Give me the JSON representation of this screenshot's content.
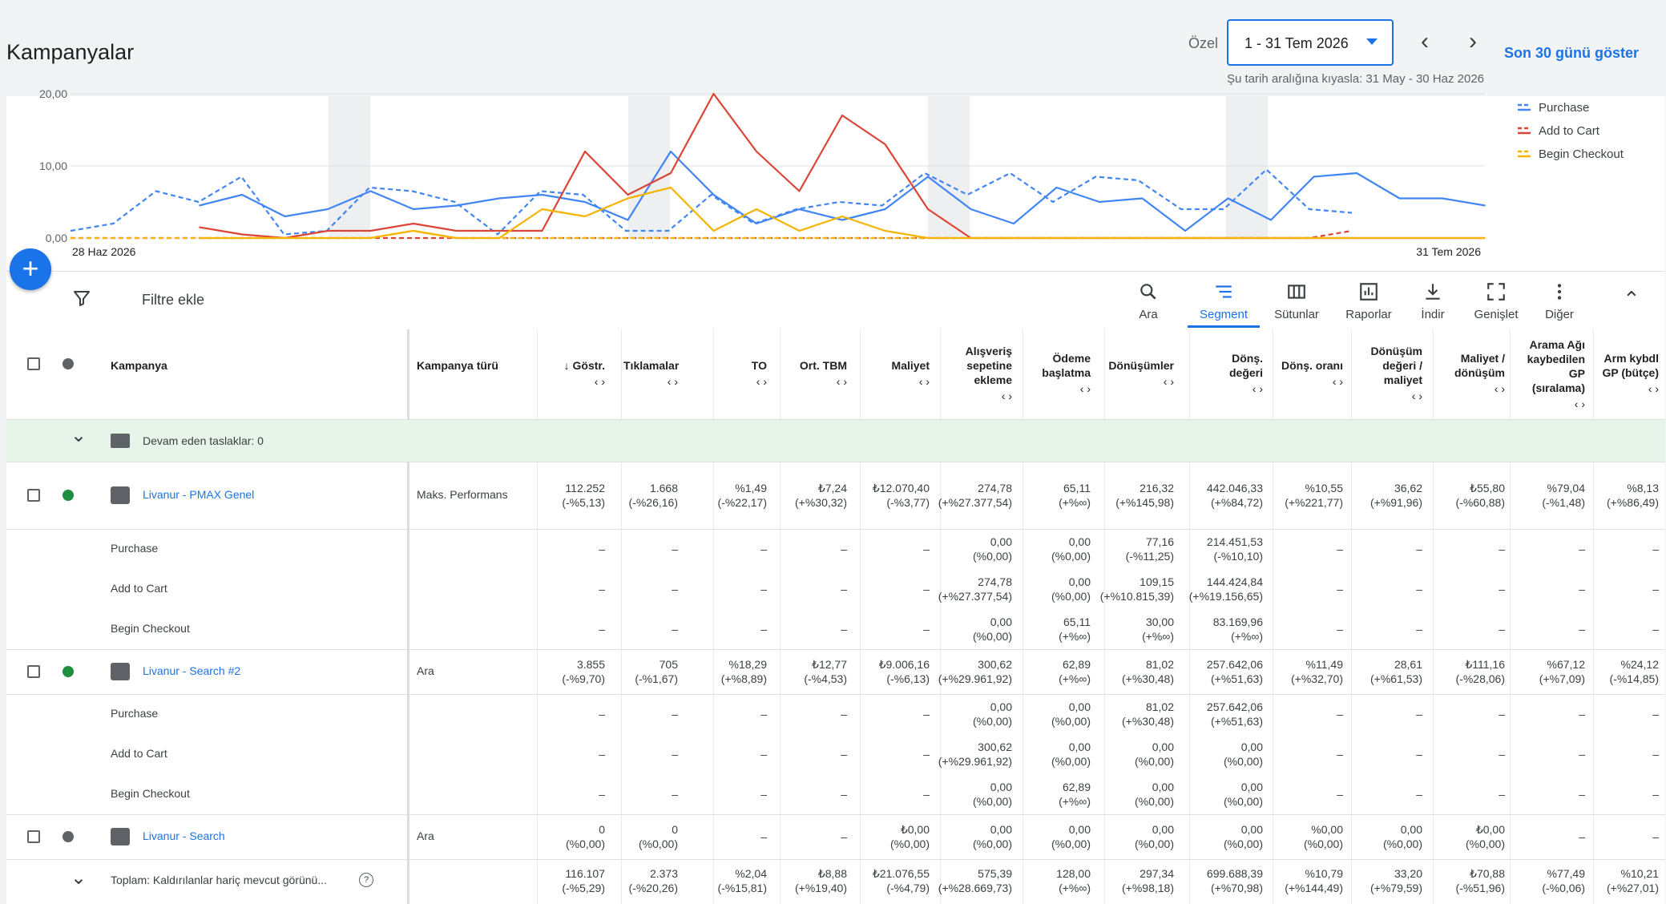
{
  "header": {
    "title": "Kampanyalar",
    "date_prefix": "Özel",
    "date_range": "1 - 31 Tem 2026",
    "compare_text": "Şu tarih aralığına kıyasla: 31 May - 30 Haz 2026",
    "last30_label": "Son 30 günü göster"
  },
  "chart_data": {
    "type": "line",
    "y_ticks": [
      "0,00",
      "10,00",
      "20,00"
    ],
    "ylim": [
      0,
      20
    ],
    "x_start_label": "28 Haz 2026",
    "x_end_label": "31 Tem 2026",
    "legend": [
      "Purchase",
      "Add to Cart",
      "Begin Checkout"
    ],
    "colors": {
      "Purchase": "#4285f4",
      "Add to Cart": "#db4437",
      "Begin Checkout": "#f4b400"
    },
    "series": [
      {
        "name": "Purchase",
        "style": "solid",
        "values": [
          null,
          null,
          null,
          4.5,
          6,
          3,
          4,
          6.5,
          4,
          4.5,
          5.5,
          6,
          5,
          2.5,
          12,
          6,
          2,
          4,
          2.5,
          4,
          8.5,
          4,
          2,
          7,
          5,
          5.5,
          1,
          5.5,
          2.5,
          8.5,
          9,
          5.5,
          5.5,
          4.5
        ]
      },
      {
        "name": "Purchase (previous)",
        "style": "dashed",
        "values": [
          1,
          2,
          6.5,
          5,
          8.5,
          0.5,
          1,
          7,
          6.5,
          5,
          0.5,
          6.5,
          6,
          1,
          1,
          6,
          2,
          4,
          5,
          4.5,
          9,
          6,
          9,
          5,
          8.5,
          8,
          4,
          4,
          9.5,
          4,
          3.5
        ]
      },
      {
        "name": "Add to Cart",
        "style": "solid",
        "values": [
          null,
          null,
          null,
          1.5,
          0.5,
          0,
          1,
          1,
          2,
          1,
          1,
          1,
          12,
          6,
          9,
          20,
          12,
          6.5,
          17,
          13,
          4,
          0,
          0,
          0,
          0,
          0,
          0,
          0,
          0,
          0,
          0,
          0,
          0,
          0
        ]
      },
      {
        "name": "Add to Cart (previous)",
        "style": "dashed",
        "values": [
          0,
          0,
          0,
          0,
          0,
          0,
          0,
          0,
          0,
          0,
          0,
          0,
          0,
          0,
          0,
          0,
          0,
          0,
          0,
          0,
          0,
          0,
          0,
          0,
          0,
          0,
          0,
          0,
          0,
          0,
          1
        ]
      },
      {
        "name": "Begin Checkout",
        "style": "solid",
        "values": [
          null,
          null,
          null,
          0,
          0,
          0,
          0,
          0,
          1,
          0,
          0,
          4,
          3,
          5.5,
          7,
          1,
          4,
          1,
          3,
          1,
          0,
          0,
          0,
          0,
          0,
          0,
          0,
          0,
          0,
          0,
          0,
          0,
          0,
          0
        ]
      },
      {
        "name": "Begin Checkout (previous)",
        "style": "dashed",
        "values": [
          0,
          0,
          0,
          0,
          0,
          0,
          0,
          0,
          1,
          0,
          0,
          0,
          0,
          0,
          0,
          0,
          0,
          0,
          0,
          0,
          0,
          0,
          0,
          0,
          0,
          0,
          0,
          0,
          0,
          0,
          0
        ]
      }
    ]
  },
  "toolbar": {
    "filter_label": "Filtre ekle",
    "tools": [
      {
        "name": "search-tool",
        "icon": "search-icon",
        "label": "Ara"
      },
      {
        "name": "segment-tool",
        "icon": "segment-icon",
        "label": "Segment"
      },
      {
        "name": "columns-tool",
        "icon": "columns-icon",
        "label": "Sütunlar"
      },
      {
        "name": "reports-tool",
        "icon": "reports-icon",
        "label": "Raporlar"
      },
      {
        "name": "download-tool",
        "icon": "download-icon",
        "label": "İndir"
      },
      {
        "name": "expand-tool",
        "icon": "expand-icon",
        "label": "Genişlet"
      },
      {
        "name": "more-tool",
        "icon": "more-vert-icon",
        "label": "Diğer"
      }
    ]
  },
  "table": {
    "headers": {
      "campaign": "Kampanya",
      "type": "Kampanya türü",
      "metrics": [
        [
          "Göstr."
        ],
        [
          "Tıklamalar"
        ],
        [
          "TO"
        ],
        [
          "Ort. TBM"
        ],
        [
          "Maliyet"
        ],
        [
          "Alışveriş",
          "sepetine",
          "ekleme"
        ],
        [
          "Ödeme",
          "başlatma"
        ],
        [
          "Dönüşümler"
        ],
        [
          "Dönş.",
          "değeri"
        ],
        [
          "Dönş. oranı"
        ],
        [
          "Dönüşüm",
          "değeri /",
          "maliyet"
        ],
        [
          "Maliyet /",
          "dönüşüm"
        ],
        [
          "Arama Ağı",
          "kaybedilen",
          "GP",
          "(sıralama)"
        ],
        [
          "Arm kybdl",
          "GP (bütçe)"
        ]
      ]
    },
    "drafts_label": "Devam eden taslaklar: 0",
    "campaigns": [
      {
        "name": "Livanur - PMAX Genel",
        "type": "Maks. Performans",
        "status_color": "#1e8e3e",
        "icon": "performance-max-icon",
        "values": [
          [
            "112.252",
            "(-%5,13)"
          ],
          [
            "1.668",
            "(-%26,16)"
          ],
          [
            "%1,49",
            "(-%22,17)"
          ],
          [
            "₺7,24",
            "(+%30,32)"
          ],
          [
            "₺12.070,40",
            "(-%3,77)"
          ],
          [
            "274,78",
            "(+%27.377,54)"
          ],
          [
            "65,11",
            "(+%∞)"
          ],
          [
            "216,32",
            "(+%145,98)"
          ],
          [
            "442.046,33",
            "(+%84,72)"
          ],
          [
            "%10,55",
            "(+%221,77)"
          ],
          [
            "36,62",
            "(+%91,96)"
          ],
          [
            "₺55,80",
            "(-%60,88)"
          ],
          [
            "%79,04",
            "(-%1,48)"
          ],
          [
            "%8,13",
            "(+%86,49)"
          ]
        ],
        "segments": [
          {
            "label": "Purchase",
            "values": [
              [
                "–"
              ],
              [
                "–"
              ],
              [
                "–"
              ],
              [
                "–"
              ],
              [
                "–"
              ],
              [
                "0,00",
                "(%0,00)"
              ],
              [
                "0,00",
                "(%0,00)"
              ],
              [
                "77,16",
                "(-%11,25)"
              ],
              [
                "214.451,53",
                "(-%10,10)"
              ],
              [
                "–"
              ],
              [
                "–"
              ],
              [
                "–"
              ],
              [
                "–"
              ],
              [
                "–"
              ]
            ]
          },
          {
            "label": "Add to Cart",
            "values": [
              [
                "–"
              ],
              [
                "–"
              ],
              [
                "–"
              ],
              [
                "–"
              ],
              [
                "–"
              ],
              [
                "274,78",
                "(+%27.377,54)"
              ],
              [
                "0,00",
                "(%0,00)"
              ],
              [
                "109,15",
                "(+%10.815,39)"
              ],
              [
                "144.424,84",
                "(+%19.156,65)"
              ],
              [
                "–"
              ],
              [
                "–"
              ],
              [
                "–"
              ],
              [
                "–"
              ],
              [
                "–"
              ]
            ]
          },
          {
            "label": "Begin Checkout",
            "values": [
              [
                "–"
              ],
              [
                "–"
              ],
              [
                "–"
              ],
              [
                "–"
              ],
              [
                "–"
              ],
              [
                "0,00",
                "(%0,00)"
              ],
              [
                "65,11",
                "(+%∞)"
              ],
              [
                "30,00",
                "(+%∞)"
              ],
              [
                "83.169,96",
                "(+%∞)"
              ],
              [
                "–"
              ],
              [
                "–"
              ],
              [
                "–"
              ],
              [
                "–"
              ],
              [
                "–"
              ]
            ]
          }
        ]
      },
      {
        "name": "Livanur - Search #2",
        "type": "Ara",
        "status_color": "#1e8e3e",
        "icon": "search-campaign-icon",
        "values": [
          [
            "3.855",
            "(-%9,70)"
          ],
          [
            "705",
            "(-%1,67)"
          ],
          [
            "%18,29",
            "(+%8,89)"
          ],
          [
            "₺12,77",
            "(-%4,53)"
          ],
          [
            "₺9.006,16",
            "(-%6,13)"
          ],
          [
            "300,62",
            "(+%29.961,92)"
          ],
          [
            "62,89",
            "(+%∞)"
          ],
          [
            "81,02",
            "(+%30,48)"
          ],
          [
            "257.642,06",
            "(+%51,63)"
          ],
          [
            "%11,49",
            "(+%32,70)"
          ],
          [
            "28,61",
            "(+%61,53)"
          ],
          [
            "₺111,16",
            "(-%28,06)"
          ],
          [
            "%67,12",
            "(+%7,09)"
          ],
          [
            "%24,12",
            "(-%14,85)"
          ]
        ],
        "segments": [
          {
            "label": "Purchase",
            "values": [
              [
                "–"
              ],
              [
                "–"
              ],
              [
                "–"
              ],
              [
                "–"
              ],
              [
                "–"
              ],
              [
                "0,00",
                "(%0,00)"
              ],
              [
                "0,00",
                "(%0,00)"
              ],
              [
                "81,02",
                "(+%30,48)"
              ],
              [
                "257.642,06",
                "(+%51,63)"
              ],
              [
                "–"
              ],
              [
                "–"
              ],
              [
                "–"
              ],
              [
                "–"
              ],
              [
                "–"
              ]
            ]
          },
          {
            "label": "Add to Cart",
            "values": [
              [
                "–"
              ],
              [
                "–"
              ],
              [
                "–"
              ],
              [
                "–"
              ],
              [
                "–"
              ],
              [
                "300,62",
                "(+%29.961,92)"
              ],
              [
                "0,00",
                "(%0,00)"
              ],
              [
                "0,00",
                "(%0,00)"
              ],
              [
                "0,00",
                "(%0,00)"
              ],
              [
                "–"
              ],
              [
                "–"
              ],
              [
                "–"
              ],
              [
                "–"
              ],
              [
                "–"
              ]
            ]
          },
          {
            "label": "Begin Checkout",
            "values": [
              [
                "–"
              ],
              [
                "–"
              ],
              [
                "–"
              ],
              [
                "–"
              ],
              [
                "–"
              ],
              [
                "0,00",
                "(%0,00)"
              ],
              [
                "62,89",
                "(+%∞)"
              ],
              [
                "0,00",
                "(%0,00)"
              ],
              [
                "0,00",
                "(%0,00)"
              ],
              [
                "–"
              ],
              [
                "–"
              ],
              [
                "–"
              ],
              [
                "–"
              ],
              [
                "–"
              ]
            ]
          }
        ]
      },
      {
        "name": "Livanur - Search",
        "type": "Ara",
        "status_color": "#5f6368",
        "icon": "search-campaign-icon",
        "values": [
          [
            "0",
            "(%0,00)"
          ],
          [
            "0",
            "(%0,00)"
          ],
          [
            "–"
          ],
          [
            "–"
          ],
          [
            "₺0,00",
            "(%0,00)"
          ],
          [
            "0,00",
            "(%0,00)"
          ],
          [
            "0,00",
            "(%0,00)"
          ],
          [
            "0,00",
            "(%0,00)"
          ],
          [
            "0,00",
            "(%0,00)"
          ],
          [
            "%0,00",
            "(%0,00)"
          ],
          [
            "0,00",
            "(%0,00)"
          ],
          [
            "₺0,00",
            "(%0,00)"
          ],
          [
            "–"
          ],
          [
            "–"
          ]
        ],
        "segments": []
      }
    ],
    "total": {
      "label": "Toplam: Kaldırılanlar hariç mevcut görünü...",
      "values": [
        [
          "116.107",
          "(-%5,29)"
        ],
        [
          "2.373",
          "(-%20,26)"
        ],
        [
          "%2,04",
          "(-%15,81)"
        ],
        [
          "₺8,88",
          "(+%19,40)"
        ],
        [
          "₺21.076,55",
          "(-%4,79)"
        ],
        [
          "575,39",
          "(+%28.669,73)"
        ],
        [
          "128,00",
          "(+%∞)"
        ],
        [
          "297,34",
          "(+%98,18)"
        ],
        [
          "699.688,39",
          "(+%70,98)"
        ],
        [
          "%10,79",
          "(+%144,49)"
        ],
        [
          "33,20",
          "(+%79,59)"
        ],
        [
          "₺70,88",
          "(-%51,96)"
        ],
        [
          "%77,49",
          "(-%0,06)"
        ],
        [
          "%10,21",
          "(+%27,01)"
        ]
      ]
    }
  }
}
